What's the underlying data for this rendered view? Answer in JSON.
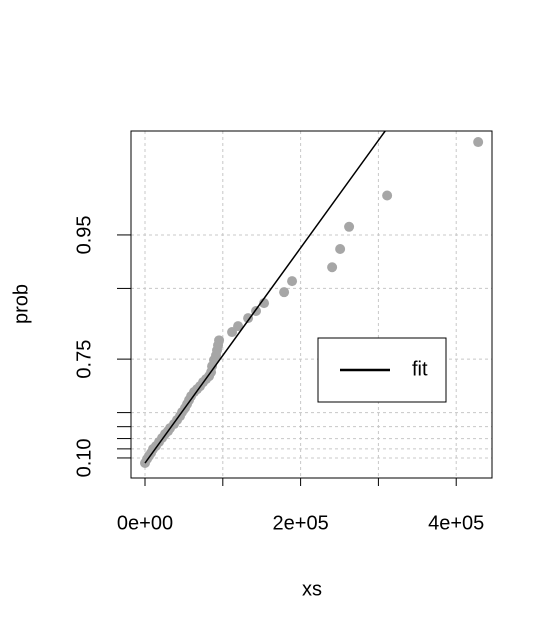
{
  "chart_data": {
    "type": "scatter",
    "xlabel": "xs",
    "ylabel": "prob",
    "xlim": [
      -18000,
      446000
    ],
    "ylim": [
      -0.167,
      0.987
    ],
    "y_scale": "exponential",
    "xticks": [
      {
        "value": 0,
        "label": "0e+00"
      },
      {
        "value": 200000,
        "label": "2e+05"
      },
      {
        "value": 400000,
        "label": "4e+05"
      }
    ],
    "x_minor_ticks": [
      100000,
      300000
    ],
    "yticks": [
      {
        "value": 0.1,
        "label": "0.10"
      },
      0.75,
      0.95
    ],
    "y_minor_ticks": [
      0.2,
      0.3,
      0.4,
      0.5,
      0.9
    ],
    "grid": true,
    "legend": "right",
    "series": [
      {
        "type": "scatter",
        "color": "#a6a6a6",
        "x": [
          0,
          2600,
          5100,
          7700,
          10300,
          14100,
          18000,
          21900,
          25700,
          29600,
          32200,
          37300,
          41200,
          45000,
          47600,
          51400,
          54000,
          56600,
          59200,
          63000,
          66900,
          70700,
          74600,
          78400,
          82300,
          84900,
          86200,
          88700,
          91300,
          92600,
          93900,
          95200,
          111900,
          119600,
          132500,
          142700,
          153000,
          178800,
          189000,
          240500,
          250800,
          262300,
          311200,
          428200
        ],
        "values": [
          0.039,
          0.088,
          0.123,
          0.156,
          0.198,
          0.229,
          0.268,
          0.305,
          0.34,
          0.365,
          0.389,
          0.42,
          0.45,
          0.477,
          0.503,
          0.529,
          0.552,
          0.575,
          0.596,
          0.617,
          0.631,
          0.645,
          0.663,
          0.676,
          0.688,
          0.704,
          0.726,
          0.747,
          0.762,
          0.777,
          0.791,
          0.804,
          0.824,
          0.837,
          0.853,
          0.866,
          0.879,
          0.895,
          0.909,
          0.924,
          0.94,
          0.955,
          0.97,
          0.985
        ]
      },
      {
        "type": "line",
        "name": "fit",
        "color": "#000000",
        "x": [
          0,
          308700
        ],
        "values": [
          0.039,
          0.987
        ]
      }
    ]
  }
}
